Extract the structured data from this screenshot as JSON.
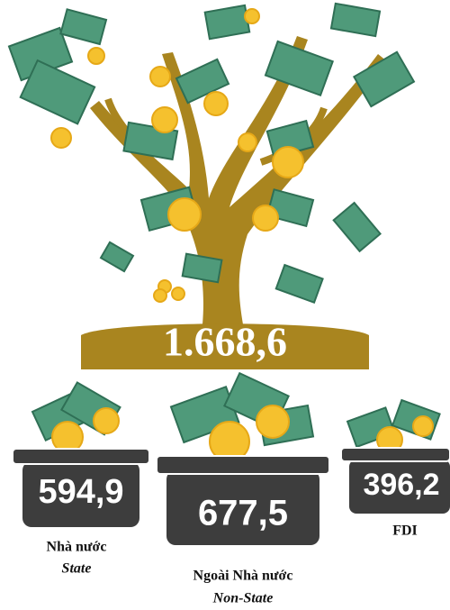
{
  "total": "1.668,6",
  "groups": [
    {
      "value": "594,9",
      "label": "Nhà nước",
      "label_en": "State"
    },
    {
      "value": "677,5",
      "label": "Ngoài Nhà nước",
      "label_en": "Non-State"
    },
    {
      "value": "396,2",
      "label": "FDI"
    }
  ]
}
